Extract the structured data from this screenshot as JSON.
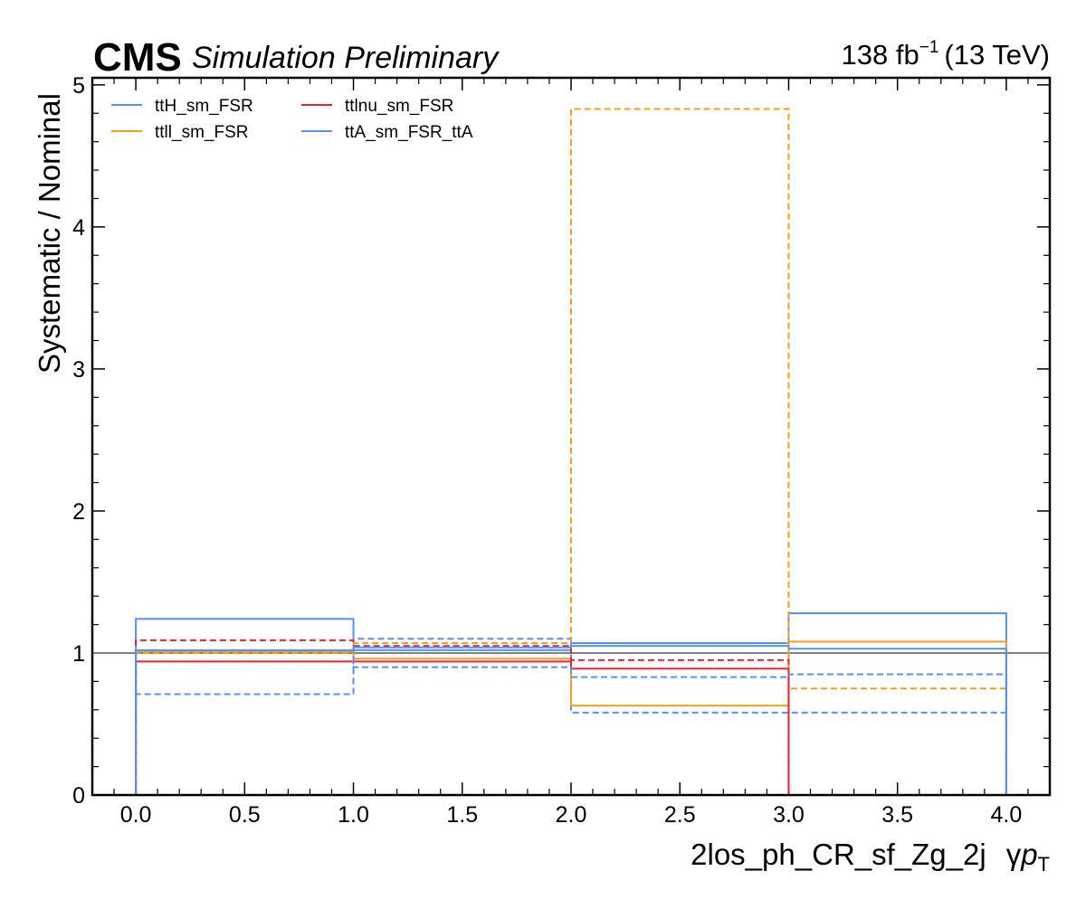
{
  "header": {
    "experiment": "CMS",
    "subtitle": "Simulation Preliminary",
    "lumi": "138 fb",
    "lumi_exp": "−1",
    "energy": "(13 TeV)"
  },
  "chart_data": {
    "type": "step",
    "ylabel": "Systematic / Nominal",
    "xlabel_main": "2los_ph_CR_sf_Zg_2j",
    "xlabel_var": "γ",
    "xlabel_p": "p",
    "xlabel_sub": "T",
    "xlim": [
      -0.2,
      4.2
    ],
    "ylim": [
      0,
      5.05
    ],
    "xticks": [
      "0.0",
      "0.5",
      "1.0",
      "1.5",
      "2.0",
      "2.5",
      "3.0",
      "3.5",
      "4.0"
    ],
    "xtick_values": [
      0,
      0.5,
      1,
      1.5,
      2,
      2.5,
      3,
      3.5,
      4
    ],
    "yticks": [
      "0",
      "1",
      "2",
      "3",
      "4",
      "5"
    ],
    "ytick_values": [
      0,
      1,
      2,
      3,
      4,
      5
    ],
    "bin_edges": [
      0,
      1,
      2,
      3,
      4
    ],
    "reference_line": 1,
    "legend_position": "top-left",
    "legend": [
      {
        "name": "ttH_sm_FSR",
        "color": "#5790fc"
      },
      {
        "name": "ttlnu_sm_FSR",
        "color": "#e42536"
      },
      {
        "name": "ttll_sm_FSR",
        "color": "#f89c20"
      },
      {
        "name": "ttA_sm_FSR_ttA",
        "color": "#5790fc"
      }
    ],
    "series": [
      {
        "name": "ttH_sm_FSR",
        "variation": "up",
        "style": "solid",
        "color": "#5790fc",
        "values": [
          1.24,
          1.02,
          1.07,
          1.28
        ]
      },
      {
        "name": "ttH_sm_FSR",
        "variation": "down",
        "style": "dashed",
        "color": "#5790fc",
        "values": [
          0.71,
          1.1,
          0.58,
          0.58
        ]
      },
      {
        "name": "ttll_sm_FSR",
        "variation": "up",
        "style": "solid",
        "color": "#f89c20",
        "values": [
          1.01,
          0.96,
          0.63,
          1.08
        ]
      },
      {
        "name": "ttll_sm_FSR",
        "variation": "down",
        "style": "dashed",
        "color": "#f89c20",
        "values": [
          1.0,
          1.07,
          4.83,
          0.75
        ]
      },
      {
        "name": "ttlnu_sm_FSR",
        "variation": "up",
        "style": "solid",
        "color": "#e42536",
        "values": [
          0.94,
          0.94,
          0.89,
          0.0
        ]
      },
      {
        "name": "ttlnu_sm_FSR",
        "variation": "down",
        "style": "dashed",
        "color": "#e42536",
        "values": [
          1.09,
          1.05,
          0.95,
          0.0
        ]
      },
      {
        "name": "ttA_sm_FSR_ttA",
        "variation": "up",
        "style": "solid",
        "color": "#5790fc",
        "values": [
          1.02,
          1.04,
          1.05,
          1.03
        ]
      },
      {
        "name": "ttA_sm_FSR_ttA",
        "variation": "down",
        "style": "dashed",
        "color": "#5790fc",
        "values": [
          1.02,
          0.9,
          0.83,
          0.85
        ]
      }
    ]
  }
}
